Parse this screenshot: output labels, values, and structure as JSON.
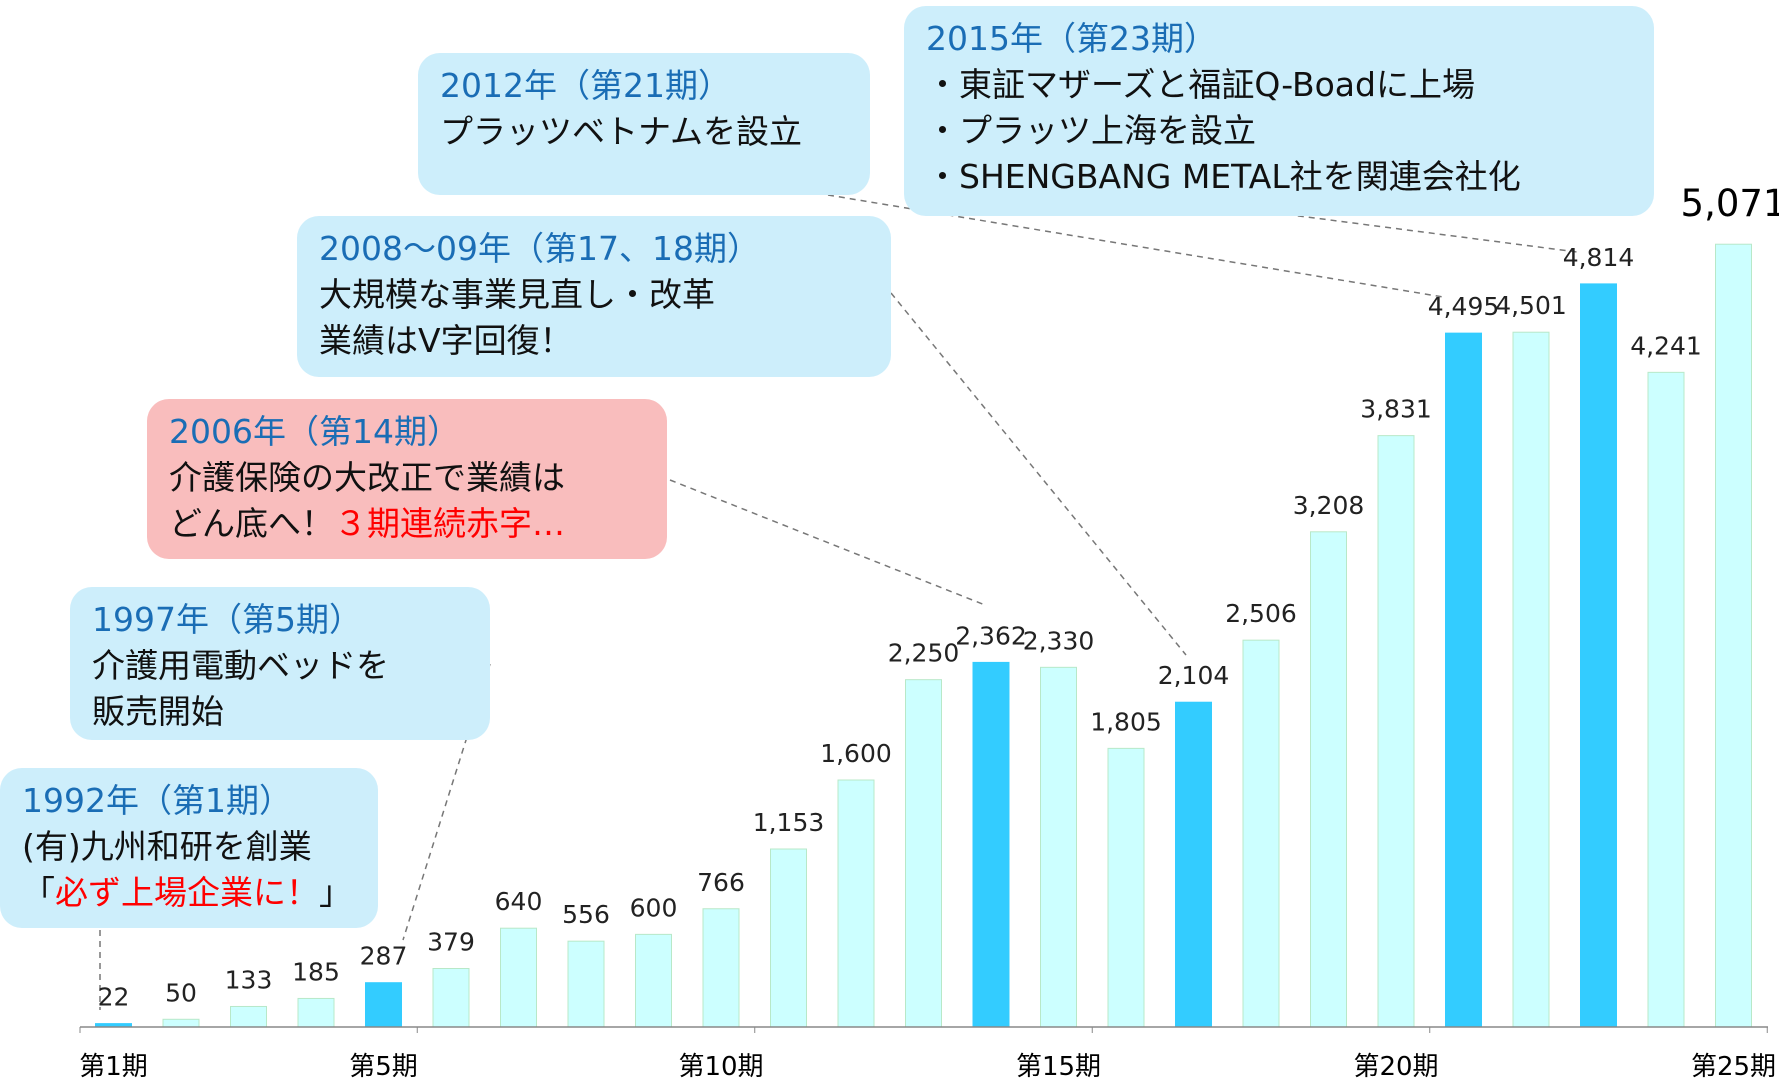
{
  "chart_data": {
    "type": "bar",
    "categories": [
      "第1期",
      null,
      null,
      null,
      "第5期",
      null,
      null,
      null,
      null,
      "第10期",
      null,
      null,
      null,
      null,
      "第15期",
      null,
      null,
      null,
      null,
      "第20期",
      null,
      null,
      null,
      null,
      "第25期"
    ],
    "values": [
      22,
      50,
      133,
      185,
      287,
      379,
      640,
      556,
      600,
      766,
      1153,
      1600,
      2250,
      2362,
      2330,
      1805,
      2104,
      2506,
      3208,
      3831,
      4495,
      4501,
      4814,
      4241,
      5071
    ],
    "value_labels": [
      "22",
      "50",
      "133",
      "185",
      "287",
      "379",
      "640",
      "556",
      "600",
      "766",
      "1,153",
      "1,600",
      "2,250",
      "2,362",
      "2,330",
      "1,805",
      "2,104",
      "2,506",
      "3,208",
      "3,831",
      "4,495",
      "4,501",
      "4,814",
      "4,241",
      "5,071"
    ],
    "colors": [
      "#33ccff",
      "#ccffff",
      "#ccffff",
      "#ccffff",
      "#33ccff",
      "#ccffff",
      "#ccffff",
      "#ccffff",
      "#ccffff",
      "#ccffff",
      "#ccffff",
      "#ccffff",
      "#ccffff",
      "#33ccff",
      "#ccffff",
      "#ccffff",
      "#33ccff",
      "#ccffff",
      "#ccffff",
      "#ccffff",
      "#33ccff",
      "#ccffff",
      "#33ccff",
      "#ccffff",
      "#ccffff"
    ],
    "ylim": [
      0,
      5500
    ],
    "annotations": [
      {
        "title": "1992年（第1期）",
        "lines": [
          [
            {
              "text": "(有)九州和研を創業"
            }
          ],
          [
            {
              "text": "「"
            },
            {
              "text": "必ず上場企業に！",
              "color": "#ff0000"
            },
            {
              "text": "」"
            }
          ]
        ]
      },
      {
        "title": "1997年（第5期）",
        "lines": [
          [
            {
              "text": "介護用電動ベッドを"
            }
          ],
          [
            {
              "text": "販売開始"
            }
          ]
        ]
      },
      {
        "title": "2006年（第14期）",
        "lines": [
          [
            {
              "text": "介護保険の大改正で業績は"
            }
          ],
          [
            {
              "text": "どん底へ！"
            },
            {
              "text": "３期連続赤字…",
              "color": "#ff0000"
            }
          ]
        ]
      },
      {
        "title": "2008～09年（第17、18期）",
        "lines": [
          [
            {
              "text": "大規模な事業見直し・改革"
            }
          ],
          [
            {
              "text": "業績はV字回復！"
            }
          ]
        ]
      },
      {
        "title": "2012年（第21期）",
        "lines": [
          [
            {
              "text": "プラッツベトナムを設立"
            }
          ]
        ]
      },
      {
        "title": "2015年（第23期）",
        "lines": [
          [
            {
              "text": "・東証マザーズと福証Q-Boadに上場"
            }
          ],
          [
            {
              "text": "・プラッツ上海を設立"
            }
          ],
          [
            {
              "text": "・SHENGBANG METAL社を関連会社化"
            }
          ]
        ]
      }
    ]
  }
}
